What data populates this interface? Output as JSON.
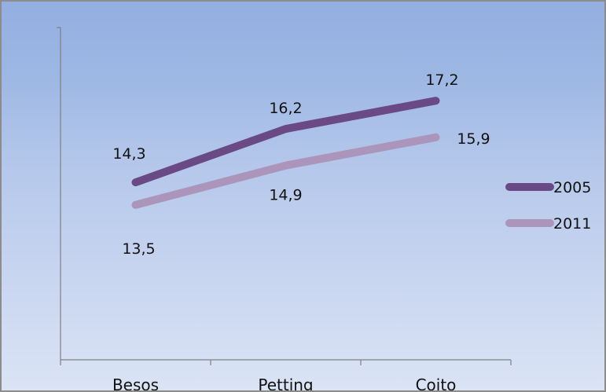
{
  "chart_data": {
    "type": "line",
    "title": "",
    "xlabel": "",
    "ylabel": "",
    "categories": [
      "Besos",
      "Petting",
      "Coito"
    ],
    "series": [
      {
        "name": "2005",
        "values": [
          14.3,
          16.2,
          17.2
        ],
        "labels": [
          "14,3",
          "16,2",
          "17,2"
        ],
        "color": "#6a4a84"
      },
      {
        "name": "2011",
        "values": [
          13.5,
          14.9,
          15.9
        ],
        "labels": [
          "13,5",
          "14,9",
          "15,9"
        ],
        "color": "#ab95bb"
      }
    ],
    "ylim": [
      8,
      19.8
    ],
    "grid": false,
    "legend": "right",
    "background": "#9eb8e4"
  }
}
